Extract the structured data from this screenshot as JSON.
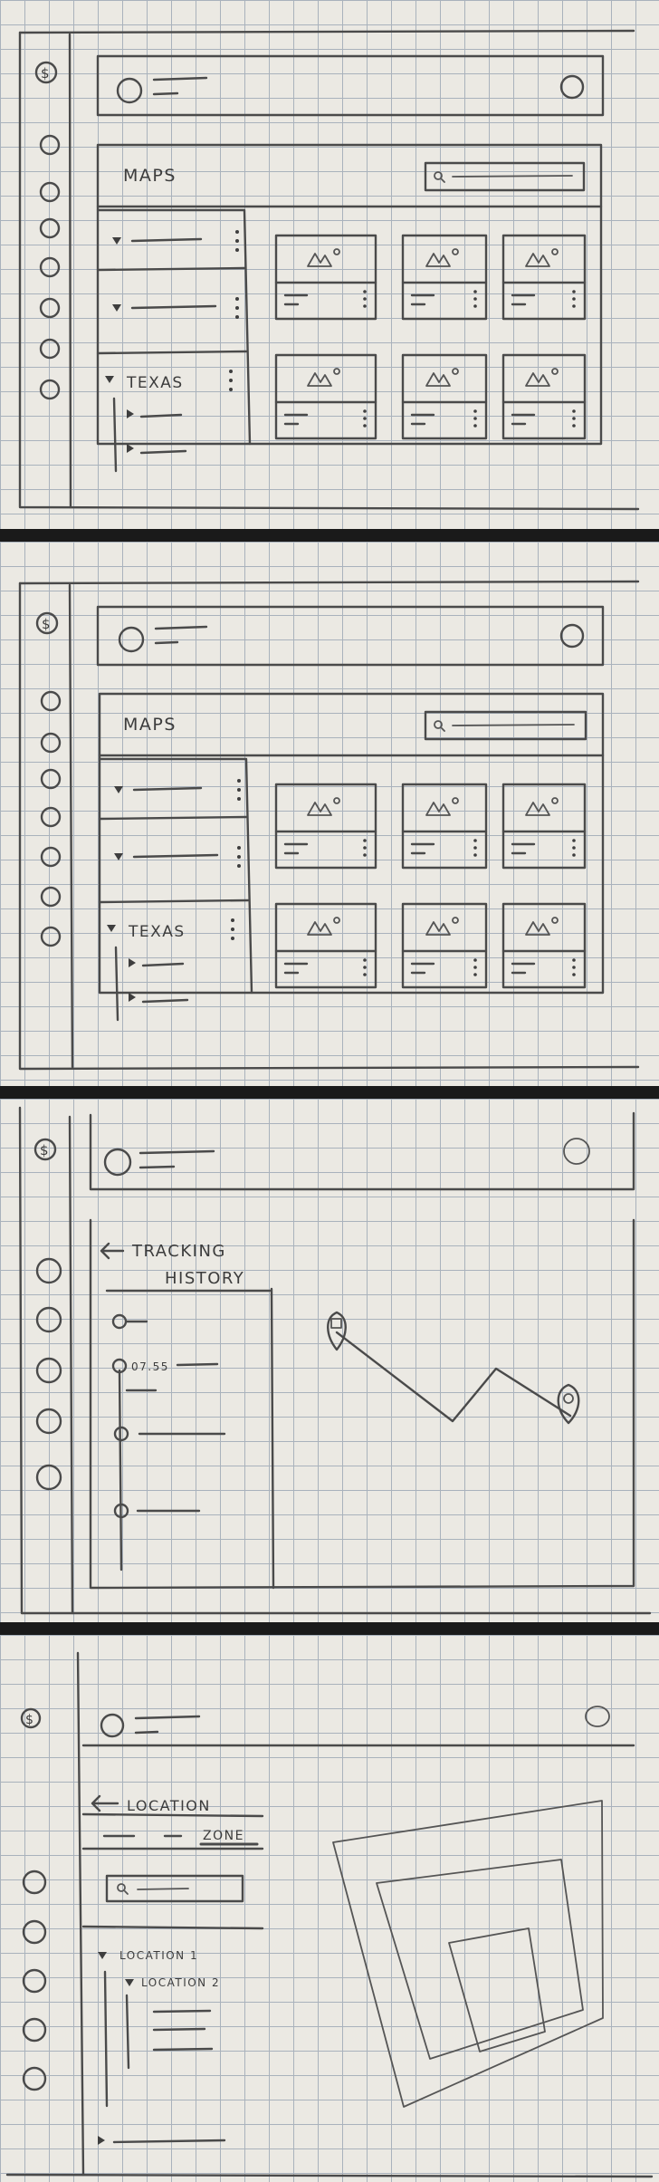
{
  "logo_glyph": "$",
  "sketch1": {
    "section_title": "MAPS",
    "folders": [
      {
        "label": "",
        "expanded": false
      },
      {
        "label": "",
        "expanded": false
      },
      {
        "label": "TEXAS",
        "expanded": true
      }
    ]
  },
  "sketch2": {
    "section_title": "MAPS",
    "folders": [
      {
        "label": "",
        "expanded": false
      },
      {
        "label": "",
        "expanded": false
      },
      {
        "label": "TEXAS",
        "expanded": true
      }
    ]
  },
  "sketch3": {
    "title_line1": "TRACKING",
    "title_line2": "HISTORY",
    "timestamp": "07.55"
  },
  "sketch4": {
    "title": "LOCATION",
    "tab_zone": "ZONE",
    "tree_item1": "LOCATION 1",
    "tree_item2": "LOCATION 2"
  },
  "icons": {
    "logo": "dollar-coin-icon",
    "avatar": "user-avatar-icon",
    "search": "magnifier-icon",
    "map_thumb": "mountain-image-icon",
    "more": "vertical-dots-icon",
    "caret": "triangle-caret-icon",
    "back": "arrow-left-icon",
    "pin": "map-pin-icon"
  },
  "colors": {
    "paper": "#ebe9e3",
    "grid": "#a9b2bc",
    "pencil": "#4a4a4a",
    "separator": "#1a1a1a"
  }
}
